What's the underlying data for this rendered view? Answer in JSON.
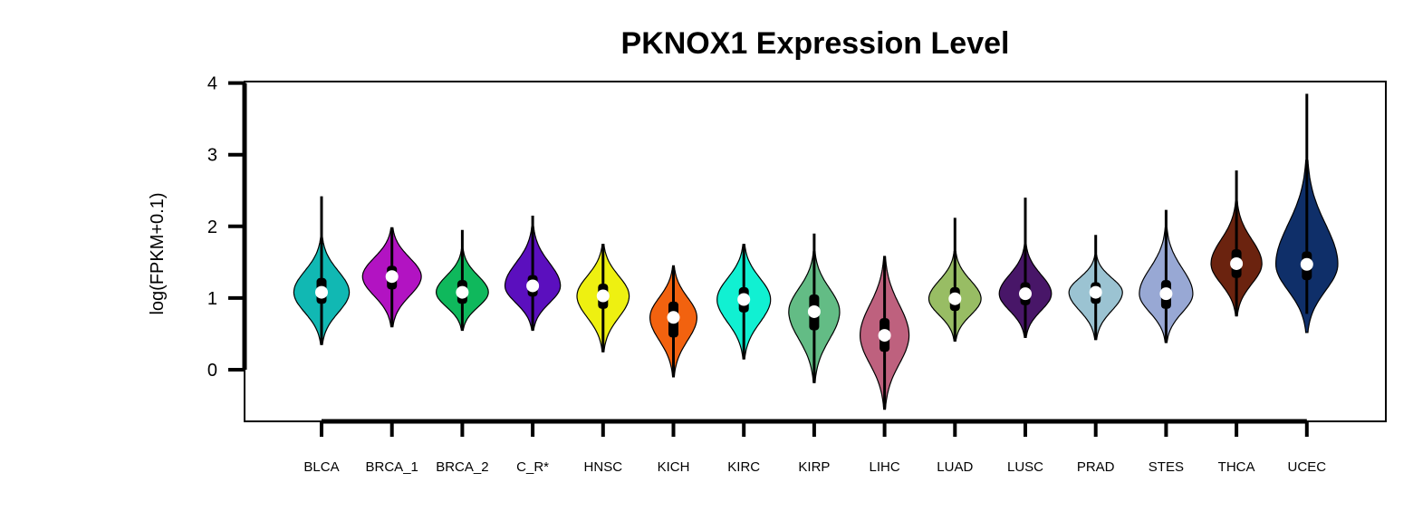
{
  "chart_data": {
    "type": "violin",
    "title": "PKNOX1 Expression Level",
    "xlabel": "",
    "ylabel": "log(FPKM+0.1)",
    "ylim": [
      -0.72,
      4.02
    ],
    "yticks": [
      "0",
      "1",
      "2",
      "3",
      "4"
    ],
    "grid": false,
    "categories": [
      "BLCA",
      "BRCA_1",
      "BRCA_2",
      "C_R*",
      "HNSC",
      "KICH",
      "KIRC",
      "KIRP",
      "LIHC",
      "LUAD",
      "LUSC",
      "PRAD",
      "STES",
      "THCA",
      "UCEC"
    ],
    "colors": [
      "#11B8B3",
      "#B213C2",
      "#0FB85C",
      "#5B0FBE",
      "#EEF011",
      "#F2620F",
      "#11F0D2",
      "#63BC85",
      "#BE617E",
      "#98BD64",
      "#481668",
      "#9BC3D2",
      "#98A8D4",
      "#6B230F",
      "#0F2F69"
    ],
    "series": [
      {
        "name": "BLCA",
        "median": 1.08,
        "q1": 0.92,
        "q3": 1.28,
        "whisker_low": 0.35,
        "whisker_high": 2.42,
        "violin_min": 0.35,
        "violin_max": 1.85,
        "violin_width": 0.85
      },
      {
        "name": "BRCA_1",
        "median": 1.3,
        "q1": 1.12,
        "q3": 1.45,
        "whisker_low": 0.6,
        "whisker_high": 1.98,
        "violin_min": 0.6,
        "violin_max": 1.98,
        "violin_width": 0.9
      },
      {
        "name": "BRCA_2",
        "median": 1.08,
        "q1": 0.92,
        "q3": 1.25,
        "whisker_low": 0.55,
        "whisker_high": 1.95,
        "violin_min": 0.55,
        "violin_max": 1.68,
        "violin_width": 0.8
      },
      {
        "name": "C_R*",
        "median": 1.17,
        "q1": 1.02,
        "q3": 1.32,
        "whisker_low": 0.55,
        "whisker_high": 2.15,
        "violin_min": 0.55,
        "violin_max": 2.0,
        "violin_width": 0.85
      },
      {
        "name": "HNSC",
        "median": 1.03,
        "q1": 0.85,
        "q3": 1.2,
        "whisker_low": 0.25,
        "whisker_high": 1.75,
        "violin_min": 0.25,
        "violin_max": 1.75,
        "violin_width": 0.8
      },
      {
        "name": "KICH",
        "median": 0.73,
        "q1": 0.45,
        "q3": 0.95,
        "whisker_low": -0.1,
        "whisker_high": 1.45,
        "violin_min": -0.1,
        "violin_max": 1.45,
        "violin_width": 0.72
      },
      {
        "name": "KIRC",
        "median": 0.98,
        "q1": 0.8,
        "q3": 1.15,
        "whisker_low": 0.15,
        "whisker_high": 1.75,
        "violin_min": 0.15,
        "violin_max": 1.75,
        "violin_width": 0.82
      },
      {
        "name": "KIRP",
        "median": 0.81,
        "q1": 0.55,
        "q3": 1.05,
        "whisker_low": -0.18,
        "whisker_high": 1.9,
        "violin_min": -0.18,
        "violin_max": 1.65,
        "violin_width": 0.78
      },
      {
        "name": "LIHC",
        "median": 0.48,
        "q1": 0.25,
        "q3": 0.72,
        "whisker_low": -0.55,
        "whisker_high": 1.58,
        "violin_min": -0.55,
        "violin_max": 1.58,
        "violin_width": 0.75
      },
      {
        "name": "LUAD",
        "median": 0.99,
        "q1": 0.82,
        "q3": 1.15,
        "whisker_low": 0.4,
        "whisker_high": 2.12,
        "violin_min": 0.4,
        "violin_max": 1.65,
        "violin_width": 0.8
      },
      {
        "name": "LUSC",
        "median": 1.06,
        "q1": 0.9,
        "q3": 1.22,
        "whisker_low": 0.45,
        "whisker_high": 2.4,
        "violin_min": 0.45,
        "violin_max": 1.75,
        "violin_width": 0.8
      },
      {
        "name": "PRAD",
        "median": 1.08,
        "q1": 0.92,
        "q3": 1.22,
        "whisker_low": 0.42,
        "whisker_high": 1.88,
        "violin_min": 0.42,
        "violin_max": 1.6,
        "violin_width": 0.82
      },
      {
        "name": "STES",
        "median": 1.06,
        "q1": 0.85,
        "q3": 1.25,
        "whisker_low": 0.38,
        "whisker_high": 2.23,
        "violin_min": 0.38,
        "violin_max": 1.98,
        "violin_width": 0.82
      },
      {
        "name": "THCA",
        "median": 1.48,
        "q1": 1.28,
        "q3": 1.68,
        "whisker_low": 0.75,
        "whisker_high": 2.78,
        "violin_min": 0.75,
        "violin_max": 2.35,
        "violin_width": 0.78
      },
      {
        "name": "UCEC",
        "median": 1.47,
        "q1": 1.25,
        "q3": 1.65,
        "whisker_low": 0.78,
        "whisker_high": 3.85,
        "violin_min": 0.52,
        "violin_max": 2.92,
        "violin_width": 0.95
      }
    ]
  }
}
